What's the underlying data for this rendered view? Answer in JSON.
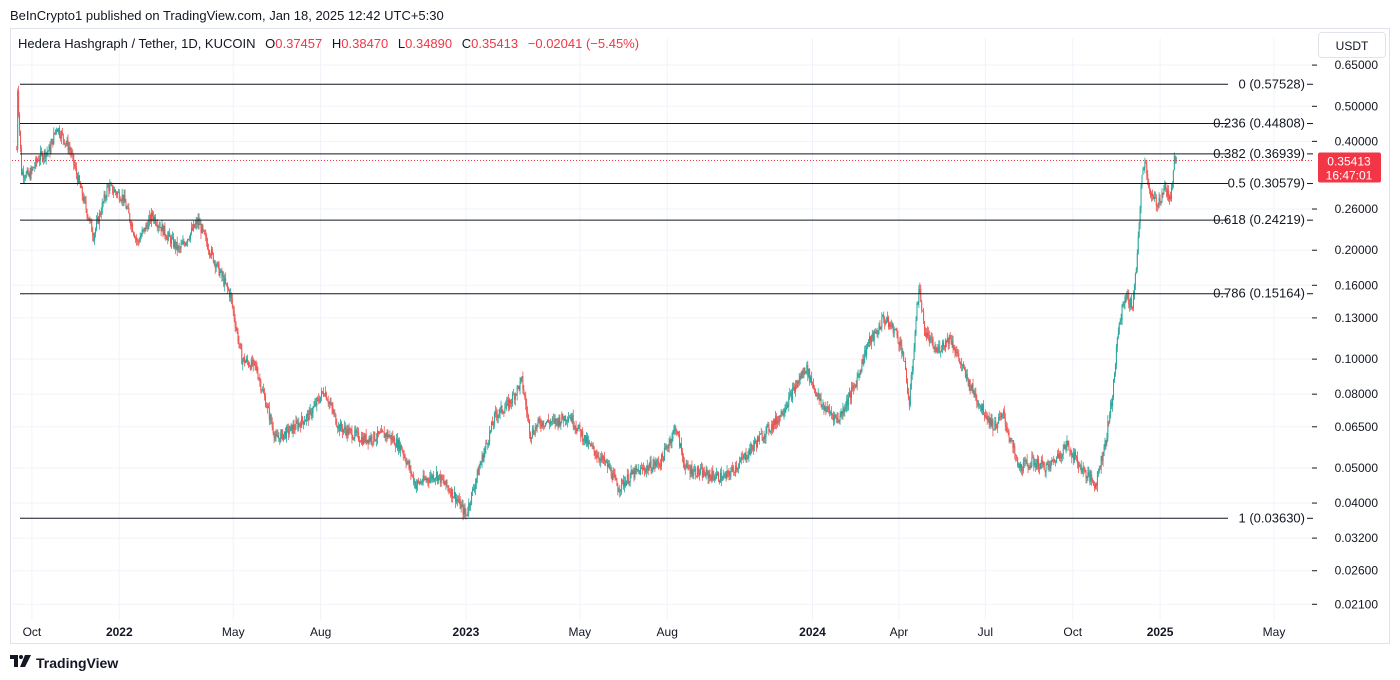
{
  "header": {
    "publish_line": "BeInCrypto1 published on TradingView.com, Jan 18, 2025 12:42 UTC+5:30"
  },
  "legend": {
    "symbol": "Hedera Hashgraph / Tether, 1D, KUCOIN",
    "o_label": "O",
    "o_value": "0.37457",
    "h_label": "H",
    "h_value": "0.38470",
    "l_label": "L",
    "l_value": "0.34890",
    "c_label": "C",
    "c_value": "0.35413",
    "change": "−0.02041 (−5.45%)"
  },
  "currency_button": "USDT",
  "footer": {
    "brand": "TradingView",
    "logo_icon": "tradingview-logo-icon"
  },
  "colors": {
    "up": "#26a69a",
    "down": "#ef5350",
    "price_tag": "#f23645",
    "fib_line": "#131722"
  },
  "chart_data": {
    "type": "candlestick",
    "scale": "log",
    "ylim": [
      0.019,
      0.68
    ],
    "grid": true,
    "y_ticks": [
      "0.65000",
      "0.50000",
      "0.40000",
      "0.26000",
      "0.20000",
      "0.16000",
      "0.13000",
      "0.10000",
      "0.08000",
      "0.06500",
      "0.05000",
      "0.04000",
      "0.03200",
      "0.02600",
      "0.02100"
    ],
    "x_ticks": [
      {
        "label": "Oct",
        "date": "2021-10-01",
        "bold": false
      },
      {
        "label": "2022",
        "date": "2022-01-01",
        "bold": true
      },
      {
        "label": "May",
        "date": "2022-05-01",
        "bold": false
      },
      {
        "label": "Aug",
        "date": "2022-08-01",
        "bold": false
      },
      {
        "label": "2023",
        "date": "2023-01-01",
        "bold": true
      },
      {
        "label": "May",
        "date": "2023-05-01",
        "bold": false
      },
      {
        "label": "Aug",
        "date": "2023-08-01",
        "bold": false
      },
      {
        "label": "2024",
        "date": "2024-01-01",
        "bold": true
      },
      {
        "label": "Apr",
        "date": "2024-04-01",
        "bold": false
      },
      {
        "label": "Jul",
        "date": "2024-07-01",
        "bold": false
      },
      {
        "label": "Oct",
        "date": "2024-10-01",
        "bold": false
      },
      {
        "label": "2025",
        "date": "2025-01-01",
        "bold": true
      },
      {
        "label": "May",
        "date": "2025-05-01",
        "bold": false
      }
    ],
    "fib_levels": [
      {
        "level": "0",
        "value": 0.57528,
        "label": "0 (0.57528)"
      },
      {
        "level": "0.236",
        "value": 0.44808,
        "label": "0.236 (0.44808)"
      },
      {
        "level": "0.382",
        "value": 0.36939,
        "label": "0.382 (0.36939)"
      },
      {
        "level": "0.5",
        "value": 0.30579,
        "label": "0.5 (0.30579)"
      },
      {
        "level": "0.618",
        "value": 0.24219,
        "label": "0.618 (0.24219)"
      },
      {
        "level": "0.786",
        "value": 0.15164,
        "label": "0.786 (0.15164)"
      },
      {
        "level": "1",
        "value": 0.0363,
        "label": "1 (0.03630)"
      }
    ],
    "last_price": {
      "value": 0.35413,
      "label": "0.35413",
      "countdown": "16:47:01"
    },
    "price_path": [
      {
        "date": "2021-09-15",
        "price": 0.38
      },
      {
        "date": "2021-09-16",
        "price": 0.56
      },
      {
        "date": "2021-09-20",
        "price": 0.33
      },
      {
        "date": "2021-09-28",
        "price": 0.32
      },
      {
        "date": "2021-10-08",
        "price": 0.36
      },
      {
        "date": "2021-10-20",
        "price": 0.38
      },
      {
        "date": "2021-10-27",
        "price": 0.44
      },
      {
        "date": "2021-11-10",
        "price": 0.38
      },
      {
        "date": "2021-11-22",
        "price": 0.29
      },
      {
        "date": "2021-12-05",
        "price": 0.22
      },
      {
        "date": "2021-12-20",
        "price": 0.3
      },
      {
        "date": "2022-01-05",
        "price": 0.28
      },
      {
        "date": "2022-01-20",
        "price": 0.21
      },
      {
        "date": "2022-02-05",
        "price": 0.25
      },
      {
        "date": "2022-02-20",
        "price": 0.22
      },
      {
        "date": "2022-03-05",
        "price": 0.2
      },
      {
        "date": "2022-03-25",
        "price": 0.24
      },
      {
        "date": "2022-04-10",
        "price": 0.19
      },
      {
        "date": "2022-04-28",
        "price": 0.15
      },
      {
        "date": "2022-05-10",
        "price": 0.1
      },
      {
        "date": "2022-05-25",
        "price": 0.095
      },
      {
        "date": "2022-06-15",
        "price": 0.06
      },
      {
        "date": "2022-07-05",
        "price": 0.065
      },
      {
        "date": "2022-07-20",
        "price": 0.07
      },
      {
        "date": "2022-08-05",
        "price": 0.082
      },
      {
        "date": "2022-08-20",
        "price": 0.065
      },
      {
        "date": "2022-09-15",
        "price": 0.06
      },
      {
        "date": "2022-10-10",
        "price": 0.062
      },
      {
        "date": "2022-10-25",
        "price": 0.057
      },
      {
        "date": "2022-11-09",
        "price": 0.045
      },
      {
        "date": "2022-12-01",
        "price": 0.048
      },
      {
        "date": "2022-12-20",
        "price": 0.042
      },
      {
        "date": "2023-01-01",
        "price": 0.037
      },
      {
        "date": "2023-01-15",
        "price": 0.05
      },
      {
        "date": "2023-02-01",
        "price": 0.07
      },
      {
        "date": "2023-02-15",
        "price": 0.075
      },
      {
        "date": "2023-03-01",
        "price": 0.087
      },
      {
        "date": "2023-03-10",
        "price": 0.062
      },
      {
        "date": "2023-03-20",
        "price": 0.067
      },
      {
        "date": "2023-04-05",
        "price": 0.067
      },
      {
        "date": "2023-04-20",
        "price": 0.07
      },
      {
        "date": "2023-05-10",
        "price": 0.058
      },
      {
        "date": "2023-06-01",
        "price": 0.05
      },
      {
        "date": "2023-06-10",
        "price": 0.044
      },
      {
        "date": "2023-06-25",
        "price": 0.048
      },
      {
        "date": "2023-07-10",
        "price": 0.05
      },
      {
        "date": "2023-07-25",
        "price": 0.052
      },
      {
        "date": "2023-08-10",
        "price": 0.065
      },
      {
        "date": "2023-08-20",
        "price": 0.05
      },
      {
        "date": "2023-09-10",
        "price": 0.048
      },
      {
        "date": "2023-10-01",
        "price": 0.047
      },
      {
        "date": "2023-10-20",
        "price": 0.053
      },
      {
        "date": "2023-11-05",
        "price": 0.06
      },
      {
        "date": "2023-11-25",
        "price": 0.068
      },
      {
        "date": "2023-12-10",
        "price": 0.08
      },
      {
        "date": "2023-12-25",
        "price": 0.095
      },
      {
        "date": "2024-01-10",
        "price": 0.075
      },
      {
        "date": "2024-01-28",
        "price": 0.068
      },
      {
        "date": "2024-02-15",
        "price": 0.085
      },
      {
        "date": "2024-02-28",
        "price": 0.11
      },
      {
        "date": "2024-03-10",
        "price": 0.12
      },
      {
        "date": "2024-03-15",
        "price": 0.13
      },
      {
        "date": "2024-03-28",
        "price": 0.12
      },
      {
        "date": "2024-04-05",
        "price": 0.105
      },
      {
        "date": "2024-04-12",
        "price": 0.075
      },
      {
        "date": "2024-04-22",
        "price": 0.16
      },
      {
        "date": "2024-04-28",
        "price": 0.12
      },
      {
        "date": "2024-05-10",
        "price": 0.105
      },
      {
        "date": "2024-05-25",
        "price": 0.115
      },
      {
        "date": "2024-06-10",
        "price": 0.09
      },
      {
        "date": "2024-06-25",
        "price": 0.075
      },
      {
        "date": "2024-07-10",
        "price": 0.065
      },
      {
        "date": "2024-07-20",
        "price": 0.07
      },
      {
        "date": "2024-08-05",
        "price": 0.05
      },
      {
        "date": "2024-08-20",
        "price": 0.052
      },
      {
        "date": "2024-09-05",
        "price": 0.05
      },
      {
        "date": "2024-09-25",
        "price": 0.058
      },
      {
        "date": "2024-10-10",
        "price": 0.05
      },
      {
        "date": "2024-10-25",
        "price": 0.045
      },
      {
        "date": "2024-11-05",
        "price": 0.06
      },
      {
        "date": "2024-11-12",
        "price": 0.08
      },
      {
        "date": "2024-11-18",
        "price": 0.12
      },
      {
        "date": "2024-11-25",
        "price": 0.15
      },
      {
        "date": "2024-12-03",
        "price": 0.14
      },
      {
        "date": "2024-12-08",
        "price": 0.19
      },
      {
        "date": "2024-12-12",
        "price": 0.3
      },
      {
        "date": "2024-12-16",
        "price": 0.36
      },
      {
        "date": "2024-12-22",
        "price": 0.28
      },
      {
        "date": "2024-12-30",
        "price": 0.27
      },
      {
        "date": "2025-01-06",
        "price": 0.3
      },
      {
        "date": "2025-01-12",
        "price": 0.27
      },
      {
        "date": "2025-01-16",
        "price": 0.37
      },
      {
        "date": "2025-01-18",
        "price": 0.35413
      }
    ]
  }
}
